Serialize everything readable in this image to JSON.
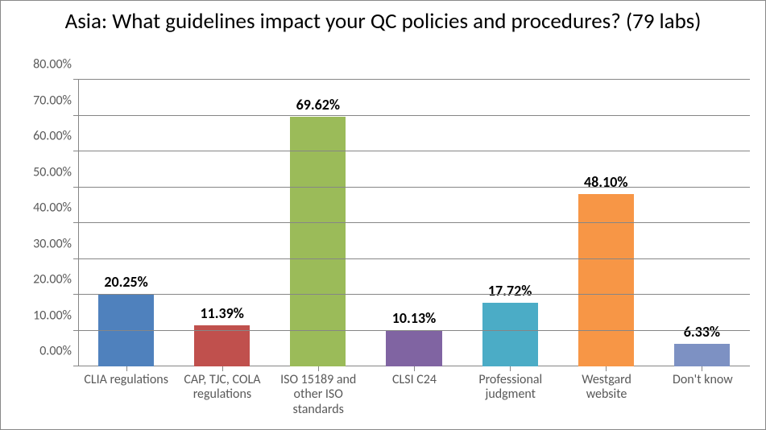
{
  "chart": {
    "type": "bar",
    "title": "Asia: What guidelines impact your QC policies and procedures? (79 labs)",
    "title_fontsize": 27,
    "title_color": "#000000",
    "background_color": "#ffffff",
    "plot_background": "#ffffff",
    "grid_color": "#868686",
    "axis_line_color": "#868686",
    "tick_color": "#868686",
    "grid_linewidth": 1,
    "ylim": [
      0,
      80
    ],
    "ytick_step": 10,
    "y_decimals": 2,
    "ylabel_fontsize": 16,
    "ylabel_color": "#595959",
    "xlabel_fontsize": 16,
    "xlabel_color": "#595959",
    "bar_label_fontsize": 18,
    "bar_label_weight": "bold",
    "bar_width_pct": 58,
    "categories": [
      "CLIA regulations",
      "CAP, TJC, COLA regulations",
      "ISO 15189 and other ISO standards",
      "CLSI C24",
      "Professional judgment",
      "Westgard website",
      "Don't know"
    ],
    "values": [
      20.25,
      11.39,
      69.62,
      10.13,
      17.72,
      48.1,
      6.33
    ],
    "value_labels": [
      "20.25%",
      "11.39%",
      "69.62%",
      "10.13%",
      "17.72%",
      "48.10%",
      "6.33%"
    ],
    "bar_colors": [
      "#4f81bd",
      "#c0504d",
      "#9bbb59",
      "#8064a2",
      "#4bacc6",
      "#f79646",
      "#7d91c3"
    ]
  }
}
